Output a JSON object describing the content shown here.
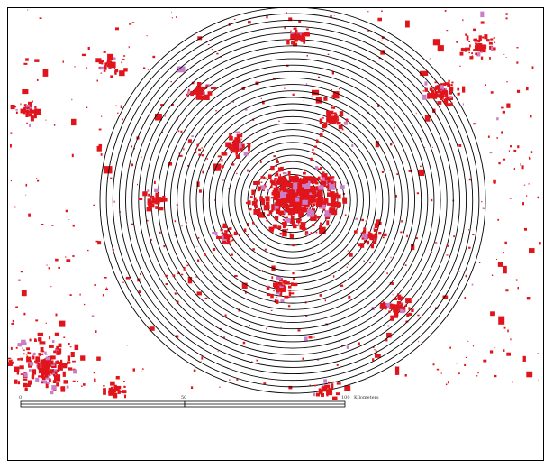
{
  "map": {
    "rings": 30,
    "ring_color": "#000000",
    "urban_color": "#e0141b",
    "urban_secondary_color": "#c87fc8",
    "background_color": "#ffffff"
  },
  "scale_bar": {
    "ticks": [
      "0",
      "50",
      "100"
    ],
    "unit_label": "Kilometers"
  }
}
